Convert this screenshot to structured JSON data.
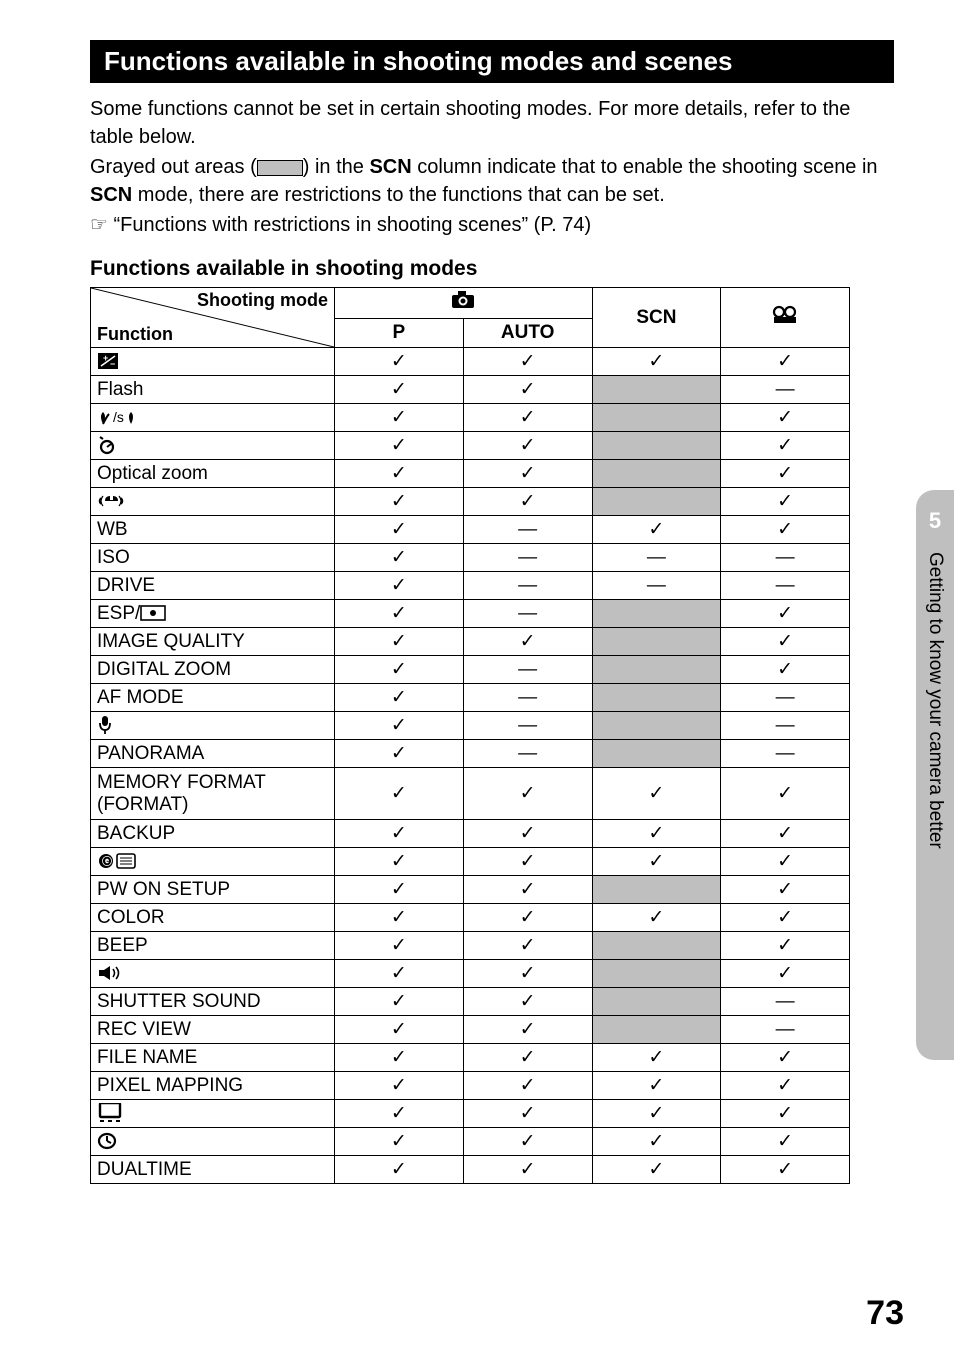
{
  "title": "Functions available in shooting modes and scenes",
  "intro1": "Some functions cannot be set in certain shooting modes. For more details, refer to the table below.",
  "intro2a": "Grayed out areas (",
  "intro2b": ") in the ",
  "intro2c": " column indicate that to enable the shooting scene in ",
  "intro2d": " mode, there are restrictions to the functions that can be set.",
  "ref": " “Functions with restrictions in shooting scenes” (P. 74)",
  "scn": "SCN",
  "subhead": "Functions available in shooting modes",
  "header_diag_top": "Shooting mode",
  "header_diag_bottom": "Function",
  "col_p": "P",
  "col_auto": "AUTO",
  "chk": "✓",
  "dash": "—",
  "side_num": "5",
  "side_text": "Getting to know your camera better",
  "page_num": "73",
  "rows": [
    {
      "fn": "exposure-comp-icon",
      "label": "",
      "p": "c",
      "a": "c",
      "s": "c",
      "m": "c",
      "ss": false
    },
    {
      "fn": "text",
      "label": "Flash",
      "p": "c",
      "a": "c",
      "s": "g",
      "m": "d",
      "ss": true
    },
    {
      "fn": "macro-icon",
      "label": "",
      "p": "c",
      "a": "c",
      "s": "g",
      "m": "c",
      "ss": true
    },
    {
      "fn": "timer-icon",
      "label": "",
      "p": "c",
      "a": "c",
      "s": "g",
      "m": "c",
      "ss": true
    },
    {
      "fn": "text",
      "label": "Optical zoom",
      "p": "c",
      "a": "c",
      "s": "g",
      "m": "c",
      "ss": true
    },
    {
      "fn": "stabilize-icon",
      "label": "",
      "p": "c",
      "a": "c",
      "s": "g",
      "m": "c",
      "ss": true
    },
    {
      "fn": "text",
      "label": "WB",
      "p": "c",
      "a": "d",
      "s": "c",
      "m": "c",
      "ss": false
    },
    {
      "fn": "text",
      "label": "ISO",
      "p": "c",
      "a": "d",
      "s": "d",
      "m": "d",
      "ss": false
    },
    {
      "fn": "text",
      "label": "DRIVE",
      "p": "c",
      "a": "d",
      "s": "d",
      "m": "d",
      "ss": false
    },
    {
      "fn": "esp-icon",
      "label": "ESP/",
      "p": "c",
      "a": "d",
      "s": "g",
      "m": "c",
      "ss": true
    },
    {
      "fn": "text",
      "label": "IMAGE QUALITY",
      "p": "c",
      "a": "c",
      "s": "g",
      "m": "c",
      "ss": true
    },
    {
      "fn": "text",
      "label": "DIGITAL ZOOM",
      "p": "c",
      "a": "d",
      "s": "g",
      "m": "c",
      "ss": true
    },
    {
      "fn": "text",
      "label": "AF MODE",
      "p": "c",
      "a": "d",
      "s": "g",
      "m": "d",
      "ss": true
    },
    {
      "fn": "mic-icon",
      "label": "",
      "p": "c",
      "a": "d",
      "s": "g",
      "m": "d",
      "ss": true
    },
    {
      "fn": "text",
      "label": "PANORAMA",
      "p": "c",
      "a": "d",
      "s": "g",
      "m": "d",
      "ss": true
    },
    {
      "fn": "text",
      "label": "MEMORY FORMAT (FORMAT)",
      "p": "c",
      "a": "c",
      "s": "c",
      "m": "c",
      "ss": false,
      "tall": true
    },
    {
      "fn": "text",
      "label": "BACKUP",
      "p": "c",
      "a": "c",
      "s": "c",
      "m": "c",
      "ss": false
    },
    {
      "fn": "lang-icon",
      "label": "",
      "p": "c",
      "a": "c",
      "s": "c",
      "m": "c",
      "ss": false
    },
    {
      "fn": "text",
      "label": "PW ON SETUP",
      "p": "c",
      "a": "c",
      "s": "g",
      "m": "c",
      "ss": true
    },
    {
      "fn": "text",
      "label": "COLOR",
      "p": "c",
      "a": "c",
      "s": "c",
      "m": "c",
      "ss": false
    },
    {
      "fn": "text",
      "label": "BEEP",
      "p": "c",
      "a": "c",
      "s": "g",
      "m": "c",
      "ss": true
    },
    {
      "fn": "sound-icon",
      "label": "",
      "p": "c",
      "a": "c",
      "s": "g",
      "m": "c",
      "ss": true
    },
    {
      "fn": "text",
      "label": "SHUTTER SOUND",
      "p": "c",
      "a": "c",
      "s": "g",
      "m": "d",
      "ss": true
    },
    {
      "fn": "text",
      "label": "REC VIEW",
      "p": "c",
      "a": "c",
      "s": "g",
      "m": "d",
      "ss": true
    },
    {
      "fn": "text",
      "label": "FILE NAME",
      "p": "c",
      "a": "c",
      "s": "c",
      "m": "c",
      "ss": false
    },
    {
      "fn": "text",
      "label": "PIXEL MAPPING",
      "p": "c",
      "a": "c",
      "s": "c",
      "m": "c",
      "ss": false
    },
    {
      "fn": "monitor-icon",
      "label": "",
      "p": "c",
      "a": "c",
      "s": "c",
      "m": "c",
      "ss": false
    },
    {
      "fn": "clock-icon",
      "label": "",
      "p": "c",
      "a": "c",
      "s": "c",
      "m": "c",
      "ss": false
    },
    {
      "fn": "text",
      "label": "DUALTIME",
      "p": "c",
      "a": "c",
      "s": "c",
      "m": "c",
      "ss": false
    }
  ]
}
